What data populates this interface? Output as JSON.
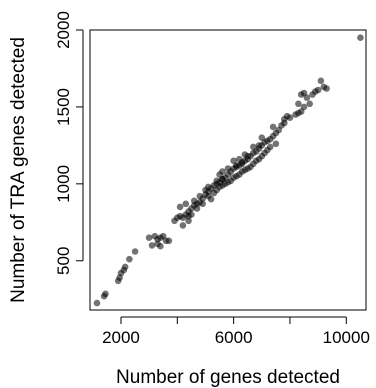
{
  "chart_data": {
    "type": "scatter",
    "title": "",
    "xlabel": "Number of genes detected",
    "ylabel": "Number of TRA genes detected",
    "xlim": [
      900,
      10700
    ],
    "ylim": [
      180,
      2000
    ],
    "xticks": [
      2000,
      6000,
      10000
    ],
    "yticks": [
      500,
      1000,
      1500,
      2000
    ],
    "xtick_labels": [
      "2000",
      "6000",
      "10000"
    ],
    "ytick_labels": [
      "500",
      "1000",
      "1500",
      "2000"
    ],
    "point_color": "#000000",
    "point_opacity": 0.55,
    "grid": false,
    "points": [
      [
        1150,
        225
      ],
      [
        1400,
        270
      ],
      [
        1450,
        285
      ],
      [
        1900,
        370
      ],
      [
        1950,
        390
      ],
      [
        2000,
        420
      ],
      [
        2100,
        440
      ],
      [
        2150,
        460
      ],
      [
        2300,
        510
      ],
      [
        2500,
        560
      ],
      [
        3100,
        600
      ],
      [
        3200,
        660
      ],
      [
        3300,
        640
      ],
      [
        3400,
        650
      ],
      [
        3500,
        660
      ],
      [
        3600,
        630
      ],
      [
        3300,
        610
      ],
      [
        3400,
        595
      ],
      [
        3000,
        650
      ],
      [
        3700,
        630
      ],
      [
        3900,
        760
      ],
      [
        4000,
        780
      ],
      [
        4100,
        790
      ],
      [
        4200,
        780
      ],
      [
        4300,
        800
      ],
      [
        4400,
        820
      ],
      [
        4500,
        840
      ],
      [
        4600,
        860
      ],
      [
        4700,
        870
      ],
      [
        4800,
        880
      ],
      [
        4200,
        730
      ],
      [
        4400,
        760
      ],
      [
        4900,
        905
      ],
      [
        5000,
        930
      ],
      [
        5100,
        950
      ],
      [
        5200,
        970
      ],
      [
        5300,
        990
      ],
      [
        5400,
        1000
      ],
      [
        5500,
        1010
      ],
      [
        5600,
        1030
      ],
      [
        4100,
        850
      ],
      [
        4300,
        870
      ],
      [
        4600,
        890
      ],
      [
        4800,
        920
      ],
      [
        5000,
        960
      ],
      [
        5100,
        920
      ],
      [
        5300,
        940
      ],
      [
        5400,
        960
      ],
      [
        5500,
        980
      ],
      [
        5600,
        990
      ],
      [
        5700,
        1040
      ],
      [
        5800,
        1060
      ],
      [
        5900,
        1080
      ],
      [
        6000,
        1100
      ],
      [
        6100,
        1110
      ],
      [
        6200,
        1120
      ],
      [
        6300,
        1130
      ],
      [
        6400,
        1150
      ],
      [
        6500,
        1160
      ],
      [
        6600,
        1180
      ],
      [
        5700,
        1000
      ],
      [
        5800,
        1010
      ],
      [
        5900,
        1020
      ],
      [
        6000,
        1040
      ],
      [
        6100,
        1050
      ],
      [
        6200,
        1060
      ],
      [
        6300,
        1080
      ],
      [
        6400,
        1090
      ],
      [
        6500,
        1100
      ],
      [
        6600,
        1110
      ],
      [
        5600,
        1080
      ],
      [
        5800,
        1100
      ],
      [
        6000,
        1150
      ],
      [
        6200,
        1160
      ],
      [
        6400,
        1190
      ],
      [
        6700,
        1200
      ],
      [
        6800,
        1210
      ],
      [
        6900,
        1230
      ],
      [
        7000,
        1250
      ],
      [
        7100,
        1270
      ],
      [
        6700,
        1130
      ],
      [
        6800,
        1150
      ],
      [
        6900,
        1160
      ],
      [
        7000,
        1180
      ],
      [
        7100,
        1200
      ],
      [
        7200,
        1280
      ],
      [
        7300,
        1290
      ],
      [
        7400,
        1310
      ],
      [
        7500,
        1330
      ],
      [
        7600,
        1350
      ],
      [
        7200,
        1220
      ],
      [
        7300,
        1240
      ],
      [
        7500,
        1260
      ],
      [
        7000,
        1300
      ],
      [
        7400,
        1370
      ],
      [
        7700,
        1380
      ],
      [
        7800,
        1395
      ],
      [
        8000,
        1430
      ],
      [
        8200,
        1450
      ],
      [
        8300,
        1460
      ],
      [
        8400,
        1470
      ],
      [
        8500,
        1500
      ],
      [
        8700,
        1520
      ],
      [
        8600,
        1560
      ],
      [
        8800,
        1580
      ],
      [
        8900,
        1600
      ],
      [
        9000,
        1610
      ],
      [
        9200,
        1630
      ],
      [
        9300,
        1620
      ],
      [
        9100,
        1670
      ],
      [
        8500,
        1590
      ],
      [
        8400,
        1580
      ],
      [
        8300,
        1520
      ],
      [
        7900,
        1440
      ],
      [
        7800,
        1420
      ],
      [
        10500,
        1950
      ],
      [
        5400,
        1020
      ],
      [
        5200,
        900
      ],
      [
        5600,
        1030
      ],
      [
        6100,
        1120
      ],
      [
        6300,
        1140
      ],
      [
        6500,
        1180
      ],
      [
        6700,
        1240
      ],
      [
        6900,
        1250
      ],
      [
        4900,
        870
      ],
      [
        4700,
        840
      ],
      [
        4500,
        800
      ],
      [
        4400,
        790
      ],
      [
        5100,
        980
      ],
      [
        5500,
        1060
      ]
    ]
  }
}
